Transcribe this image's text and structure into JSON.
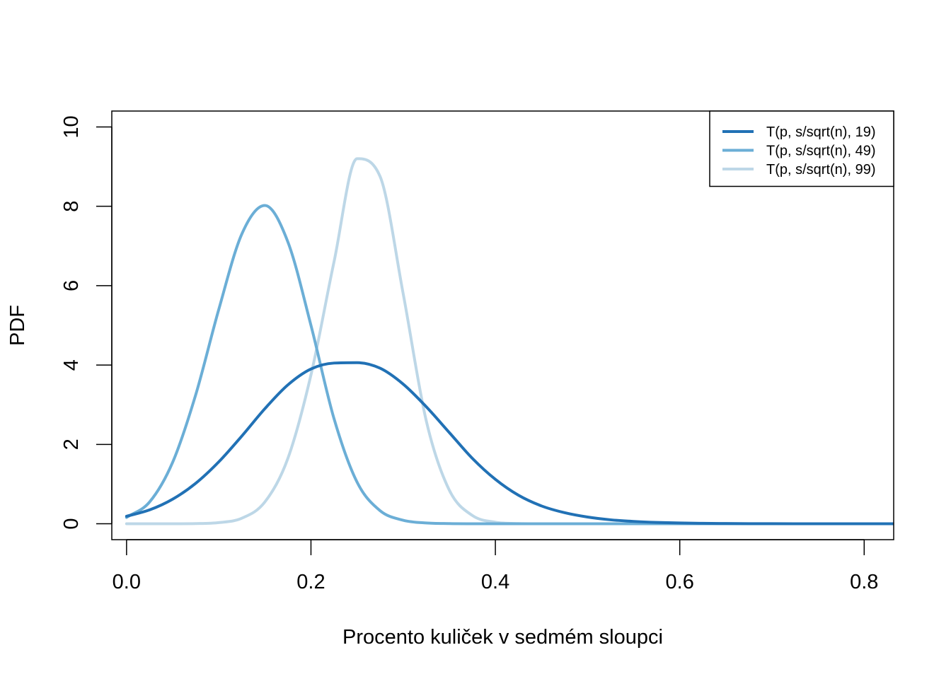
{
  "chart_data": {
    "type": "line",
    "title": "",
    "xlabel": "Procento kuliček v sedmém sloupci",
    "ylabel": "PDF",
    "xlim": [
      -0.016,
      0.832
    ],
    "ylim": [
      -0.4,
      10.4
    ],
    "x_ticks": [
      {
        "value": 0.0,
        "label": "0.0"
      },
      {
        "value": 0.2,
        "label": "0.2"
      },
      {
        "value": 0.4,
        "label": "0.4"
      },
      {
        "value": 0.6,
        "label": "0.6"
      },
      {
        "value": 0.8,
        "label": "0.8"
      }
    ],
    "y_ticks": [
      {
        "value": 0,
        "label": "0"
      },
      {
        "value": 2,
        "label": "2"
      },
      {
        "value": 4,
        "label": "4"
      },
      {
        "value": 6,
        "label": "6"
      },
      {
        "value": 8,
        "label": "8"
      },
      {
        "value": 10,
        "label": "10"
      }
    ],
    "grid": false,
    "legend_position": "top-right",
    "x": [
      0.0,
      0.025,
      0.05,
      0.075,
      0.1,
      0.125,
      0.15,
      0.175,
      0.2,
      0.225,
      0.25,
      0.275,
      0.3,
      0.325,
      0.35,
      0.375,
      0.4,
      0.425,
      0.45,
      0.475,
      0.5,
      0.525,
      0.55,
      0.575,
      0.6,
      0.625,
      0.65,
      0.675,
      0.7,
      0.725,
      0.75,
      0.775,
      0.8,
      0.832
    ],
    "series": [
      {
        "name": "T(p, s/sqrt(n), 19)",
        "color": "#2171b5",
        "values": [
          0.19,
          0.35,
          0.62,
          1.02,
          1.56,
          2.21,
          2.9,
          3.5,
          3.9,
          4.05,
          4.06,
          3.92,
          3.52,
          2.95,
          2.3,
          1.65,
          1.12,
          0.72,
          0.45,
          0.28,
          0.17,
          0.1,
          0.06,
          0.035,
          0.02,
          0.012,
          0.007,
          0.004,
          0.003,
          0.002,
          0.001,
          0.001,
          0.0,
          0.0
        ]
      },
      {
        "name": "T(p, s/sqrt(n), 49)",
        "color": "#6baed6",
        "values": [
          0.16,
          0.55,
          1.55,
          3.25,
          5.4,
          7.3,
          8.02,
          7.1,
          5.0,
          2.65,
          1.05,
          0.33,
          0.09,
          0.02,
          0.005,
          0.001,
          0.0,
          0.0,
          0.0,
          0.0,
          0.0,
          0.0,
          0.0,
          0.0,
          0.0,
          0.0,
          0.0,
          0.0,
          0.0,
          0.0,
          0.0,
          0.0,
          0.0,
          0.0
        ]
      },
      {
        "name": "T(p, s/sqrt(n), 99)",
        "color": "#bdd7e7",
        "values": [
          0.0,
          0.0,
          0.001,
          0.005,
          0.03,
          0.14,
          0.55,
          1.65,
          3.75,
          6.6,
          9.2,
          8.75,
          5.8,
          2.6,
          0.85,
          0.21,
          0.04,
          0.006,
          0.001,
          0.0,
          0.0,
          0.0,
          0.0,
          0.0,
          0.0,
          0.0,
          0.0,
          0.0,
          0.0,
          0.0,
          0.0,
          0.0,
          0.0,
          0.0
        ]
      }
    ]
  }
}
